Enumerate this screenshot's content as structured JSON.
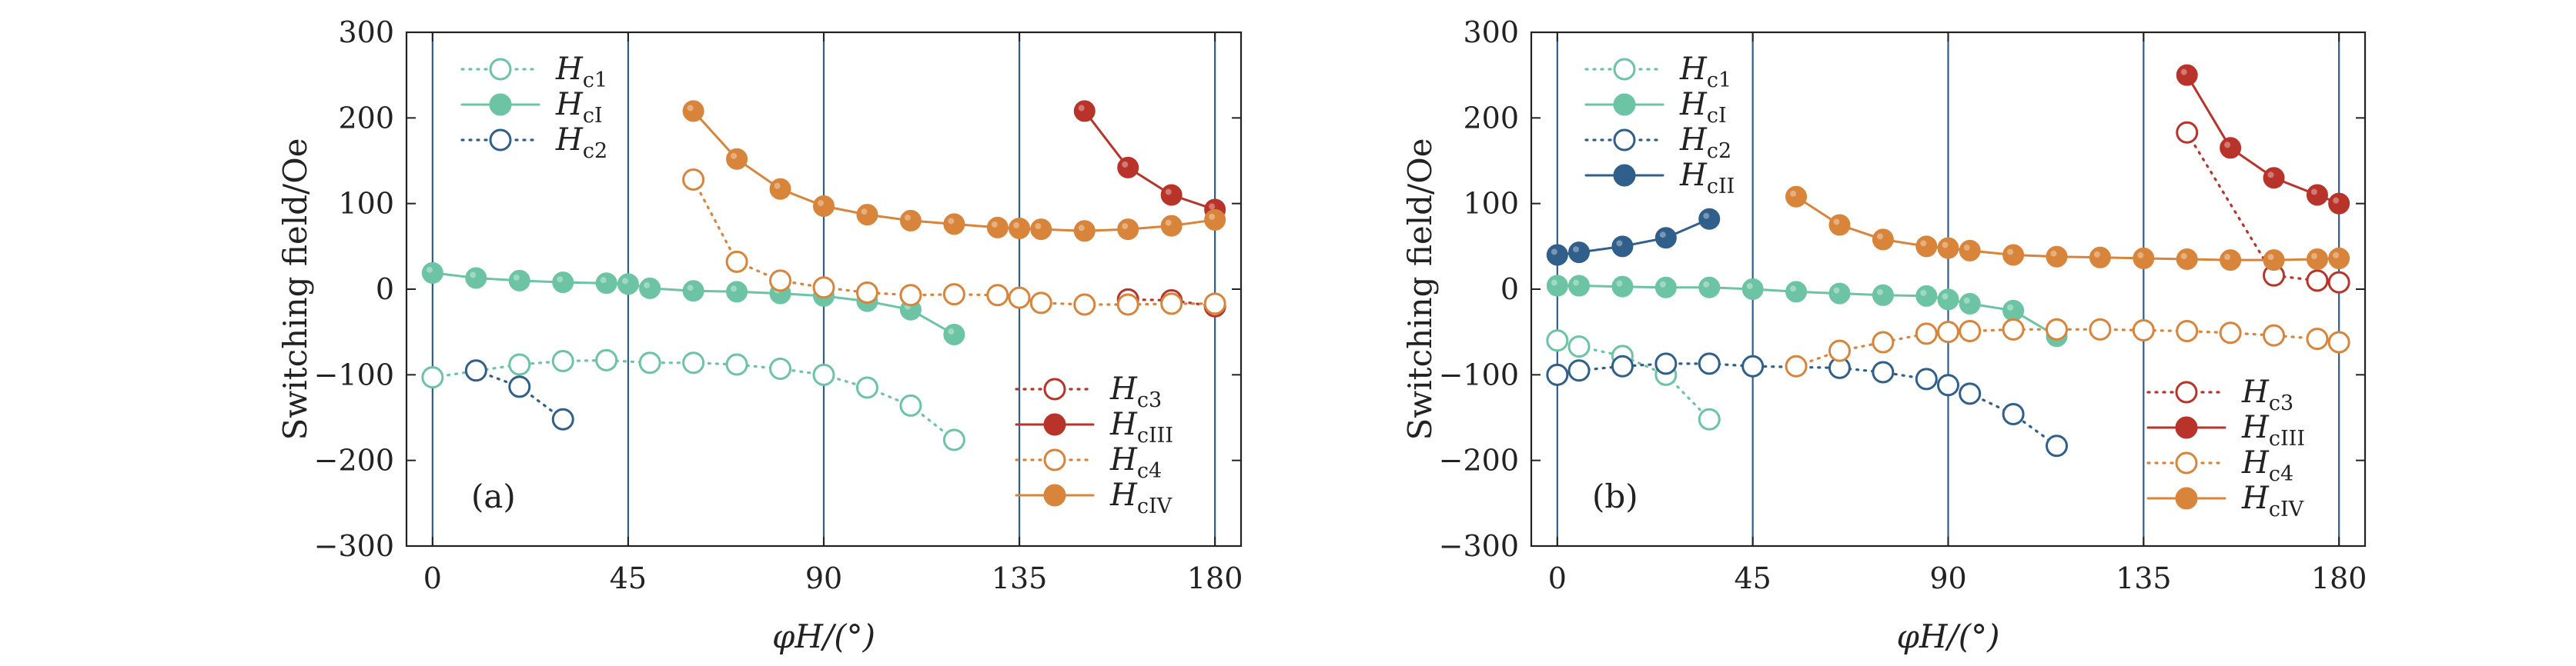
{
  "chart_data": [
    {
      "type": "line",
      "panel_label": "(a)",
      "xlabel": "φH/(°)",
      "ylabel": "Switching field/Oe",
      "xlim": [
        -6,
        186
      ],
      "ylim": [
        -300,
        300
      ],
      "xticks": [
        0,
        45,
        90,
        135,
        180
      ],
      "xtick_labels": [
        "0",
        "45",
        "90",
        "135",
        "180"
      ],
      "yticks": [
        -300,
        -200,
        -100,
        0,
        100,
        200,
        300
      ],
      "ytick_labels": [
        "−300",
        "−200",
        "−100",
        "0",
        "100",
        "200",
        "300"
      ],
      "vlines": [
        0,
        45,
        90,
        135,
        180
      ],
      "series": [
        {
          "name": "Hc1",
          "base": "H",
          "sub": "c1",
          "color": "#6cc4a4",
          "filled": false,
          "line": "dotted",
          "x": [
            0,
            20,
            30,
            40,
            50,
            60,
            70,
            80,
            90,
            100,
            110,
            120
          ],
          "y": [
            -103,
            -88,
            -84,
            -83,
            -86,
            -86,
            -88,
            -93,
            -100,
            -115,
            -136,
            -176
          ]
        },
        {
          "name": "HcI",
          "base": "H",
          "sub": "cI",
          "color": "#6cc4a4",
          "filled": true,
          "line": "solid",
          "x": [
            0,
            10,
            20,
            30,
            40,
            45,
            50,
            60,
            70,
            80,
            90,
            100,
            110,
            120
          ],
          "y": [
            19,
            13,
            10,
            8,
            7,
            6,
            1,
            -2,
            -3,
            -5,
            -8,
            -14,
            -24,
            -53
          ]
        },
        {
          "name": "Hc2",
          "base": "H",
          "sub": "c2",
          "color": "#2f5f8a",
          "filled": false,
          "line": "dotted",
          "x": [
            10,
            20,
            30
          ],
          "y": [
            -95,
            -114,
            -152
          ]
        },
        {
          "name": "Hc3",
          "base": "H",
          "sub": "c3",
          "color": "#b8332a",
          "filled": false,
          "line": "dotted",
          "x": [
            160,
            170,
            180
          ],
          "y": [
            -12,
            -13,
            -20
          ]
        },
        {
          "name": "HcIII",
          "base": "H",
          "sub": "cIII",
          "color": "#b8332a",
          "filled": true,
          "line": "solid",
          "x": [
            150,
            160,
            170,
            180
          ],
          "y": [
            208,
            142,
            110,
            93
          ]
        },
        {
          "name": "Hc4",
          "base": "H",
          "sub": "c4",
          "color": "#d8843a",
          "filled": false,
          "line": "dotted",
          "x": [
            60,
            70,
            80,
            90,
            100,
            110,
            120,
            130,
            135,
            140,
            150,
            160,
            170,
            180
          ],
          "y": [
            128,
            32,
            10,
            2,
            -4,
            -7,
            -6,
            -7,
            -10,
            -16,
            -18,
            -18,
            -17,
            -17
          ]
        },
        {
          "name": "HcIV",
          "base": "H",
          "sub": "cIV",
          "color": "#d8843a",
          "filled": true,
          "line": "solid",
          "x": [
            60,
            70,
            80,
            90,
            100,
            110,
            120,
            130,
            135,
            140,
            150,
            160,
            170,
            180
          ],
          "y": [
            208,
            152,
            117,
            97,
            87,
            80,
            76,
            72,
            71,
            70,
            68,
            70,
            74,
            81
          ]
        }
      ]
    },
    {
      "type": "line",
      "panel_label": "(b)",
      "xlabel": "φH/(°)",
      "ylabel": "Switching field/Oe",
      "xlim": [
        -6,
        186
      ],
      "ylim": [
        -300,
        300
      ],
      "xticks": [
        0,
        45,
        90,
        135,
        180
      ],
      "xtick_labels": [
        "0",
        "45",
        "90",
        "135",
        "180"
      ],
      "yticks": [
        -300,
        -200,
        -100,
        0,
        100,
        200,
        300
      ],
      "ytick_labels": [
        "−300",
        "−200",
        "−100",
        "0",
        "100",
        "200",
        "300"
      ],
      "vlines": [
        0,
        45,
        90,
        135,
        180
      ],
      "series": [
        {
          "name": "Hc1",
          "base": "H",
          "sub": "c1",
          "color": "#6cc4a4",
          "filled": false,
          "line": "dotted",
          "x": [
            0,
            5,
            15,
            25,
            35
          ],
          "y": [
            -60,
            -67,
            -78,
            -100,
            -152
          ]
        },
        {
          "name": "HcI",
          "base": "H",
          "sub": "cI",
          "color": "#6cc4a4",
          "filled": true,
          "line": "solid",
          "x": [
            0,
            5,
            15,
            25,
            35,
            45,
            55,
            65,
            75,
            85,
            90,
            95,
            105,
            115
          ],
          "y": [
            4,
            4,
            3,
            2,
            2,
            0,
            -3,
            -5,
            -7,
            -8,
            -12,
            -17,
            -25,
            -55
          ]
        },
        {
          "name": "Hc2",
          "base": "H",
          "sub": "c2",
          "color": "#2f5f8a",
          "filled": false,
          "line": "dotted",
          "x": [
            0,
            5,
            15,
            25,
            35,
            45,
            65,
            75,
            85,
            90,
            95,
            105,
            115
          ],
          "y": [
            -100,
            -95,
            -90,
            -87,
            -87,
            -90,
            -92,
            -97,
            -105,
            -112,
            -122,
            -146,
            -183
          ]
        },
        {
          "name": "HcII",
          "base": "H",
          "sub": "cII",
          "color": "#2f5f8a",
          "filled": true,
          "line": "solid",
          "x": [
            0,
            5,
            15,
            25,
            35
          ],
          "y": [
            40,
            43,
            50,
            60,
            82
          ]
        },
        {
          "name": "Hc3",
          "base": "H",
          "sub": "c3",
          "color": "#b8332a",
          "filled": false,
          "line": "dotted",
          "x": [
            145,
            165,
            175,
            180
          ],
          "y": [
            183,
            16,
            10,
            8
          ]
        },
        {
          "name": "HcIII",
          "base": "H",
          "sub": "cIII",
          "color": "#b8332a",
          "filled": true,
          "line": "solid",
          "x": [
            145,
            155,
            165,
            175,
            180
          ],
          "y": [
            250,
            165,
            130,
            110,
            100
          ]
        },
        {
          "name": "Hc4",
          "base": "H",
          "sub": "c4",
          "color": "#d8843a",
          "filled": false,
          "line": "dotted",
          "x": [
            55,
            65,
            75,
            85,
            90,
            95,
            105,
            115,
            125,
            135,
            145,
            155,
            165,
            175,
            180
          ],
          "y": [
            -90,
            -72,
            -62,
            -52,
            -50,
            -49,
            -47,
            -47,
            -47,
            -48,
            -49,
            -51,
            -54,
            -58,
            -62
          ]
        },
        {
          "name": "HcIV",
          "base": "H",
          "sub": "cIV",
          "color": "#d8843a",
          "filled": true,
          "line": "solid",
          "x": [
            55,
            65,
            75,
            85,
            90,
            95,
            105,
            115,
            125,
            135,
            145,
            155,
            165,
            175,
            180
          ],
          "y": [
            108,
            75,
            58,
            50,
            48,
            45,
            40,
            38,
            37,
            36,
            35,
            34,
            34,
            35,
            36
          ]
        }
      ]
    }
  ]
}
